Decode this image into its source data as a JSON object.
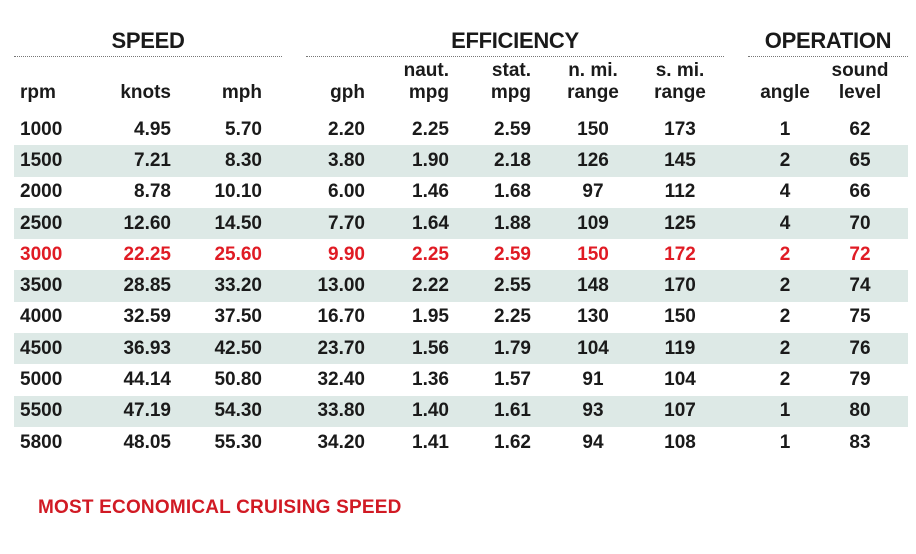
{
  "groups": {
    "speed": "SPEED",
    "efficiency": "EFFICIENCY",
    "operation": "OPERATION"
  },
  "headers": {
    "rpm": {
      "line1": "",
      "line2": "rpm"
    },
    "knots": {
      "line1": "",
      "line2": "knots"
    },
    "mph": {
      "line1": "",
      "line2": "mph"
    },
    "gph": {
      "line1": "",
      "line2": "gph"
    },
    "naut_mpg": {
      "line1": "naut.",
      "line2": "mpg"
    },
    "stat_mpg": {
      "line1": "stat.",
      "line2": "mpg"
    },
    "n_range": {
      "line1": "n. mi.",
      "line2": "range"
    },
    "s_range": {
      "line1": "s. mi.",
      "line2": "range"
    },
    "angle": {
      "line1": "",
      "line2": "angle"
    },
    "sound": {
      "line1": "sound",
      "line2": "level"
    }
  },
  "rows": [
    {
      "rpm": "1000",
      "knots": "4.95",
      "mph": "5.70",
      "gph": "2.20",
      "naut_mpg": "2.25",
      "stat_mpg": "2.59",
      "n_range": "150",
      "s_range": "173",
      "angle": "1",
      "sound": "62"
    },
    {
      "rpm": "1500",
      "knots": "7.21",
      "mph": "8.30",
      "gph": "3.80",
      "naut_mpg": "1.90",
      "stat_mpg": "2.18",
      "n_range": "126",
      "s_range": "145",
      "angle": "2",
      "sound": "65"
    },
    {
      "rpm": "2000",
      "knots": "8.78",
      "mph": "10.10",
      "gph": "6.00",
      "naut_mpg": "1.46",
      "stat_mpg": "1.68",
      "n_range": "97",
      "s_range": "112",
      "angle": "4",
      "sound": "66"
    },
    {
      "rpm": "2500",
      "knots": "12.60",
      "mph": "14.50",
      "gph": "7.70",
      "naut_mpg": "1.64",
      "stat_mpg": "1.88",
      "n_range": "109",
      "s_range": "125",
      "angle": "4",
      "sound": "70"
    },
    {
      "rpm": "3000",
      "knots": "22.25",
      "mph": "25.60",
      "gph": "9.90",
      "naut_mpg": "2.25",
      "stat_mpg": "2.59",
      "n_range": "150",
      "s_range": "172",
      "angle": "2",
      "sound": "72"
    },
    {
      "rpm": "3500",
      "knots": "28.85",
      "mph": "33.20",
      "gph": "13.00",
      "naut_mpg": "2.22",
      "stat_mpg": "2.55",
      "n_range": "148",
      "s_range": "170",
      "angle": "2",
      "sound": "74"
    },
    {
      "rpm": "4000",
      "knots": "32.59",
      "mph": "37.50",
      "gph": "16.70",
      "naut_mpg": "1.95",
      "stat_mpg": "2.25",
      "n_range": "130",
      "s_range": "150",
      "angle": "2",
      "sound": "75"
    },
    {
      "rpm": "4500",
      "knots": "36.93",
      "mph": "42.50",
      "gph": "23.70",
      "naut_mpg": "1.56",
      "stat_mpg": "1.79",
      "n_range": "104",
      "s_range": "119",
      "angle": "2",
      "sound": "76"
    },
    {
      "rpm": "5000",
      "knots": "44.14",
      "mph": "50.80",
      "gph": "32.40",
      "naut_mpg": "1.36",
      "stat_mpg": "1.57",
      "n_range": "91",
      "s_range": "104",
      "angle": "2",
      "sound": "79"
    },
    {
      "rpm": "5500",
      "knots": "47.19",
      "mph": "54.30",
      "gph": "33.80",
      "naut_mpg": "1.40",
      "stat_mpg": "1.61",
      "n_range": "93",
      "s_range": "107",
      "angle": "1",
      "sound": "80"
    },
    {
      "rpm": "5800",
      "knots": "48.05",
      "mph": "55.30",
      "gph": "34.20",
      "naut_mpg": "1.41",
      "stat_mpg": "1.62",
      "n_range": "94",
      "s_range": "108",
      "angle": "1",
      "sound": "83"
    }
  ],
  "highlight_rpm": "3000",
  "footnote": "MOST ECONOMICAL CRUISING SPEED",
  "colors": {
    "highlight": "#e01b24",
    "shade": "#dde9e6",
    "text": "#1a1a1a"
  }
}
